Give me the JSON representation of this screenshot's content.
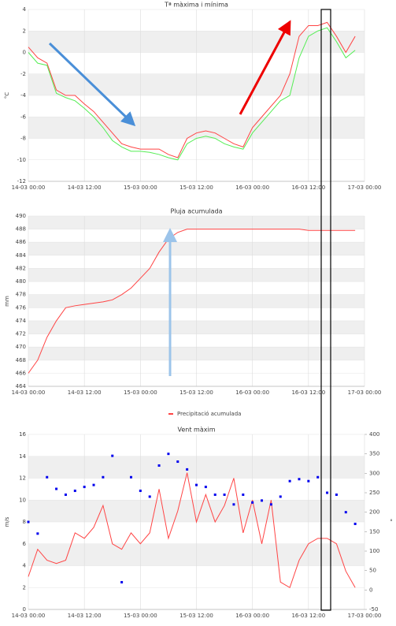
{
  "chart_data": [
    {
      "type": "line",
      "title": "Tª màxima i mínima",
      "y_label": "°C",
      "xlim": [
        "14-03 00:00",
        "17-03 00:00"
      ],
      "xticks": [
        "14-03 00:00",
        "14-03 12:00",
        "15-03 00:00",
        "15-03 12:00",
        "16-03 00:00",
        "16-03 12:00",
        "17-03 00:00"
      ],
      "ylim": [
        -12,
        4
      ],
      "yticks": [
        -12,
        -10,
        -8,
        -6,
        -4,
        -2,
        0,
        2,
        4
      ],
      "grid": true,
      "x": [
        "14-03 00:00",
        "14-03 02:00",
        "14-03 04:00",
        "14-03 06:00",
        "14-03 08:00",
        "14-03 10:00",
        "14-03 12:00",
        "14-03 14:00",
        "14-03 16:00",
        "14-03 18:00",
        "14-03 20:00",
        "14-03 22:00",
        "15-03 00:00",
        "15-03 02:00",
        "15-03 04:00",
        "15-03 06:00",
        "15-03 08:00",
        "15-03 10:00",
        "15-03 12:00",
        "15-03 14:00",
        "15-03 16:00",
        "15-03 18:00",
        "15-03 20:00",
        "15-03 22:00",
        "16-03 00:00",
        "16-03 02:00",
        "16-03 04:00",
        "16-03 06:00",
        "16-03 08:00",
        "16-03 10:00",
        "16-03 12:00",
        "16-03 14:00",
        "16-03 16:00",
        "16-03 18:00",
        "16-03 20:00",
        "16-03 22:00"
      ],
      "series": [
        {
          "color": "#ff4444",
          "values": [
            0.5,
            -0.5,
            -1,
            -3.5,
            -4,
            -4,
            -4.8,
            -5.5,
            -6.5,
            -7.5,
            -8.5,
            -8.8,
            -9,
            -9,
            -9,
            -9.5,
            -9.8,
            -8,
            -7.5,
            -7.3,
            -7.5,
            -8,
            -8.5,
            -8.8,
            -7,
            -6,
            -5,
            -4,
            -2,
            1.5,
            2.5,
            2.5,
            2.8,
            1.5,
            0,
            1.5
          ]
        },
        {
          "color": "#55ee55",
          "values": [
            0,
            -1,
            -1.2,
            -3.8,
            -4.2,
            -4.5,
            -5.2,
            -6,
            -7,
            -8.2,
            -8.8,
            -9.2,
            -9.2,
            -9.3,
            -9.5,
            -9.8,
            -10,
            -8.5,
            -8,
            -7.8,
            -8,
            -8.5,
            -8.8,
            -9,
            -7.5,
            -6.5,
            -5.5,
            -4.5,
            -4,
            -0.5,
            1.5,
            2,
            2.3,
            1,
            -0.5,
            0.2
          ]
        }
      ]
    },
    {
      "type": "line",
      "title": "Pluja acumulada",
      "y_label": "mm",
      "xlim": [
        "14-03 00:00",
        "17-03 00:00"
      ],
      "xticks": [
        "14-03 00:00",
        "14-03 12:00",
        "15-03 00:00",
        "15-03 12:00",
        "16-03 00:00",
        "16-03 12:00",
        "17-03 00:00"
      ],
      "ylim": [
        464,
        490
      ],
      "yticks": [
        464,
        466,
        468,
        470,
        472,
        474,
        476,
        478,
        480,
        482,
        484,
        486,
        488,
        490
      ],
      "grid": true,
      "x": [
        "14-03 00:00",
        "14-03 02:00",
        "14-03 04:00",
        "14-03 06:00",
        "14-03 08:00",
        "14-03 10:00",
        "14-03 12:00",
        "14-03 14:00",
        "14-03 16:00",
        "14-03 18:00",
        "14-03 20:00",
        "14-03 22:00",
        "15-03 00:00",
        "15-03 02:00",
        "15-03 04:00",
        "15-03 06:00",
        "15-03 08:00",
        "15-03 10:00",
        "15-03 12:00",
        "15-03 14:00",
        "15-03 16:00",
        "15-03 18:00",
        "15-03 20:00",
        "15-03 22:00",
        "16-03 00:00",
        "16-03 02:00",
        "16-03 04:00",
        "16-03 06:00",
        "16-03 08:00",
        "16-03 10:00",
        "16-03 12:00",
        "16-03 14:00",
        "16-03 16:00",
        "16-03 18:00",
        "16-03 20:00",
        "16-03 22:00"
      ],
      "series": [
        {
          "name": "Precipitació acumulada",
          "color": "#ff4444",
          "values": [
            466,
            468,
            471.5,
            474,
            476,
            476.3,
            476.5,
            476.7,
            476.9,
            477.2,
            478,
            479,
            480.5,
            482,
            484.5,
            486.5,
            487.5,
            488,
            488,
            488,
            488,
            488,
            488,
            488,
            488,
            488,
            488,
            488,
            488,
            488,
            487.8,
            487.8,
            487.8,
            487.8,
            487.8,
            487.8
          ]
        }
      ]
    },
    {
      "type": "line",
      "title": "Vent màxim",
      "y_label": "m/s",
      "y2_label": "°",
      "xlim": [
        "14-03 00:00",
        "17-03 00:00"
      ],
      "xticks": [
        "14-03 00:00",
        "14-03 12:00",
        "15-03 00:00",
        "15-03 12:00",
        "16-03 00:00",
        "16-03 12:00",
        "17-03 00:00"
      ],
      "ylim": [
        0,
        16
      ],
      "yticks": [
        0,
        2,
        4,
        6,
        8,
        10,
        12,
        14,
        16
      ],
      "grid": true,
      "y2lim": [
        -50,
        400
      ],
      "y2ticks": [
        -50,
        0,
        50,
        100,
        150,
        200,
        250,
        300,
        350,
        400
      ],
      "x": [
        "14-03 00:00",
        "14-03 02:00",
        "14-03 04:00",
        "14-03 06:00",
        "14-03 08:00",
        "14-03 10:00",
        "14-03 12:00",
        "14-03 14:00",
        "14-03 16:00",
        "14-03 18:00",
        "14-03 20:00",
        "14-03 22:00",
        "15-03 00:00",
        "15-03 02:00",
        "15-03 04:00",
        "15-03 06:00",
        "15-03 08:00",
        "15-03 10:00",
        "15-03 12:00",
        "15-03 14:00",
        "15-03 16:00",
        "15-03 18:00",
        "15-03 20:00",
        "15-03 22:00",
        "16-03 00:00",
        "16-03 02:00",
        "16-03 04:00",
        "16-03 06:00",
        "16-03 08:00",
        "16-03 10:00",
        "16-03 12:00",
        "16-03 14:00",
        "16-03 16:00",
        "16-03 18:00",
        "16-03 20:00",
        "16-03 22:00"
      ],
      "series": [
        {
          "color": "#ff4444",
          "values": [
            3,
            5.5,
            4.5,
            4.2,
            4.5,
            7,
            6.5,
            7.5,
            9.5,
            6,
            5.5,
            7,
            6,
            7,
            11,
            6.5,
            9,
            12.5,
            8,
            10.5,
            8,
            9.5,
            12,
            7,
            10,
            6,
            10,
            2.5,
            2,
            4.5,
            6,
            6.5,
            6.5,
            6,
            3.5,
            2
          ]
        },
        {
          "type": "scatter",
          "axis": "y2",
          "color": "#0000ee",
          "values": [
            175,
            145,
            290,
            260,
            245,
            255,
            265,
            270,
            290,
            345,
            20,
            290,
            255,
            240,
            320,
            350,
            330,
            310,
            270,
            265,
            245,
            245,
            220,
            245,
            225,
            230,
            220,
            240,
            280,
            285,
            280,
            290,
            250,
            245,
            200,
            170
          ]
        }
      ]
    }
  ]
}
